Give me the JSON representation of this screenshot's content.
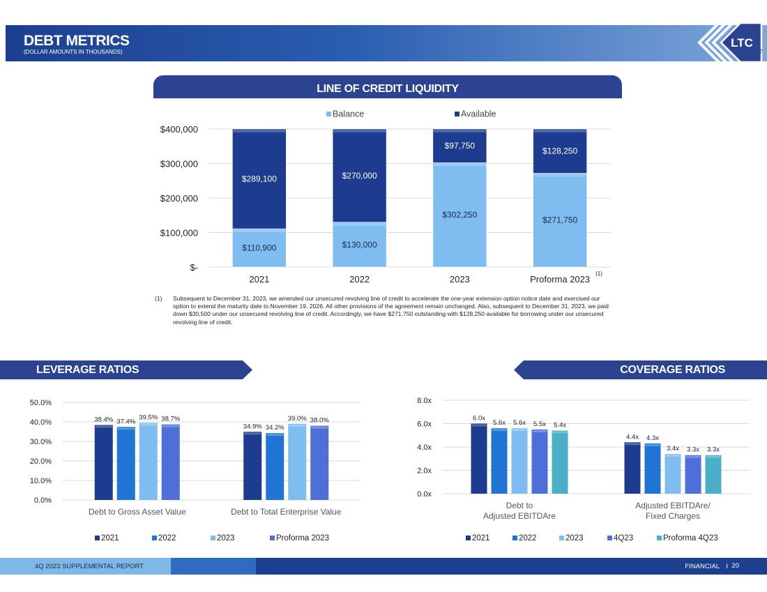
{
  "header": {
    "title": "DEBT METRICS",
    "subtitle": "(DOLLAR AMOUNTS IN THOUSANDS)",
    "logo_text": "LTC",
    "logo_subtext": "REIT"
  },
  "line_of_credit": {
    "banner": "LINE OF CREDIT LIQUIDITY",
    "footnote_marker": "(1)",
    "footnote": "Subsequent to December 31, 2023, we amended our unsecured revolving line of credit to accelerate the one-year extension option notice date and exercised our option to extend the maturity date to November 19, 2026. All other provisions of the agreement remain unchanged. Also, subsequent to December 31, 2023, we paid down $30,500 under our unsecured revolving line of credit. Accordingly, we have $271,750 outstanding with $128,250 available for borrowing under our unsecured revolving line of credit."
  },
  "leverage": {
    "banner": "LEVERAGE RATIOS"
  },
  "coverage": {
    "banner": "COVERAGE RATIOS"
  },
  "footer": {
    "left": "4Q 2023 SUPPLEMENTAL REPORT",
    "right": "FINANCIAL",
    "separator": "I",
    "page": "20"
  },
  "colors": {
    "navy": "#1d3c8f",
    "blue": "#1f74d4",
    "light_blue": "#7fbdf0",
    "periwinkle": "#4f6fd8",
    "teal": "#4bafc8",
    "banner": "#2b4391"
  },
  "chart_data": [
    {
      "id": "loc",
      "type": "bar",
      "stacked": true,
      "title": "LINE OF CREDIT LIQUIDITY",
      "categories": [
        "2021",
        "2022",
        "2023",
        "Proforma 2023"
      ],
      "category_superscripts": [
        "",
        "",
        "",
        "(1)"
      ],
      "series": [
        {
          "name": "Balance",
          "values": [
            110900,
            130000,
            302250,
            271750
          ],
          "labels": [
            "$110,900",
            "$130,000",
            "$302,250",
            "$271,750"
          ]
        },
        {
          "name": "Available",
          "values": [
            289100,
            270000,
            97750,
            128250
          ],
          "labels": [
            "$289,100",
            "$270,000",
            "$97,750",
            "$128,250"
          ]
        }
      ],
      "y_ticks": [
        0,
        100000,
        200000,
        300000,
        400000
      ],
      "y_tick_labels": [
        "$-",
        "$100,000",
        "$200,000",
        "$300,000",
        "$400,000"
      ],
      "ylim": [
        0,
        400000
      ],
      "legend_position": "top"
    },
    {
      "id": "leverage",
      "type": "bar",
      "title": "LEVERAGE RATIOS",
      "categories": [
        "Debt to Gross Asset Value",
        "Debt to Total Enterprise Value"
      ],
      "series": [
        {
          "name": "2021",
          "values": [
            38.4,
            34.9
          ],
          "labels": [
            "38.4%",
            "34.9%"
          ]
        },
        {
          "name": "2022",
          "values": [
            37.4,
            34.2
          ],
          "labels": [
            "37.4%",
            "34.2%"
          ]
        },
        {
          "name": "2023",
          "values": [
            39.5,
            39.0
          ],
          "labels": [
            "39.5%",
            "39.0%"
          ]
        },
        {
          "name": "Proforma 2023",
          "values": [
            38.7,
            38.0
          ],
          "labels": [
            "38.7%",
            "38.0%"
          ]
        }
      ],
      "y_ticks": [
        0,
        10,
        20,
        30,
        40,
        50
      ],
      "y_tick_labels": [
        "0.0%",
        "10.0%",
        "20.0%",
        "30.0%",
        "40.0%",
        "50.0%"
      ],
      "ylim": [
        0,
        50
      ],
      "legend_position": "bottom"
    },
    {
      "id": "coverage",
      "type": "bar",
      "title": "COVERAGE RATIOS",
      "categories": [
        "Debt to\nAdjusted EBITDAre",
        "Adjusted EBITDAre/\nFixed Charges"
      ],
      "series": [
        {
          "name": "2021",
          "values": [
            6.0,
            4.4
          ],
          "labels": [
            "6.0x",
            "4.4x"
          ]
        },
        {
          "name": "2022",
          "values": [
            5.6,
            4.3
          ],
          "labels": [
            "5.6x",
            "4.3x"
          ]
        },
        {
          "name": "2023",
          "values": [
            5.6,
            3.4
          ],
          "labels": [
            "5.6x",
            "3.4x"
          ]
        },
        {
          "name": "4Q23",
          "values": [
            5.5,
            3.3
          ],
          "labels": [
            "5.5x",
            "3.3x"
          ]
        },
        {
          "name": "Proforma 4Q23",
          "values": [
            5.4,
            3.3
          ],
          "labels": [
            "5.4x",
            "3.3x"
          ]
        }
      ],
      "y_ticks": [
        0,
        2,
        4,
        6,
        8
      ],
      "y_tick_labels": [
        "0.0x",
        "2.0x",
        "4.0x",
        "6.0x",
        "8.0x"
      ],
      "ylim": [
        0,
        8
      ],
      "legend_position": "bottom"
    }
  ]
}
